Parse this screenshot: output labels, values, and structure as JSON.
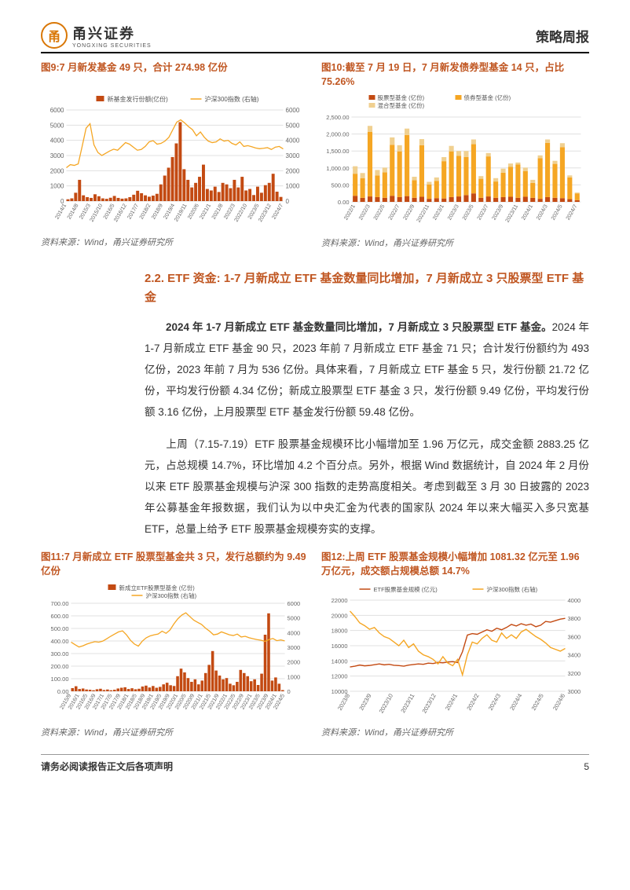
{
  "header": {
    "logo_cn": "甬兴证券",
    "logo_en": "YONGXING SECURITIES",
    "report_type": "策略周报"
  },
  "chart9": {
    "title": "图9:7 月新发基金 49 只，合计 274.98 亿份",
    "source": "资料来源：Wind，甬兴证券研究所",
    "legend1": "新基金发行份额(亿份)",
    "legend2": "沪深300指数 (右轴)",
    "type": "bar_line",
    "colors": {
      "bar": "#c34a12",
      "line": "#f5a623",
      "grid": "#e0e0e0",
      "bg": "#ffffff"
    },
    "y_left": {
      "min": 0,
      "max": 6000,
      "step": 1000
    },
    "y_right": {
      "min": 0,
      "max": 6000,
      "step": 1000
    },
    "x_labels": [
      "2014/1",
      "2014/8",
      "2015/3",
      "2015/10",
      "2016/5",
      "2016/12",
      "2017/7",
      "2018/2",
      "2018/9",
      "2019/4",
      "2019/11",
      "2020/6",
      "2021/1",
      "2021/8",
      "2022/3",
      "2022/10",
      "2023/5",
      "2023/12",
      "2024/7"
    ],
    "bars": [
      120,
      180,
      550,
      1400,
      380,
      260,
      210,
      450,
      320,
      180,
      150,
      220,
      340,
      210,
      160,
      180,
      260,
      420,
      680,
      520,
      380,
      290,
      360,
      480,
      1100,
      1680,
      2200,
      2900,
      3800,
      5200,
      2100,
      1400,
      900,
      1200,
      1600,
      2400,
      800,
      700,
      950,
      600,
      1200,
      1100,
      850,
      1400,
      900,
      1600,
      700,
      800,
      400,
      950,
      550,
      1050,
      1200,
      1800,
      620,
      275
    ],
    "line": [
      2200,
      2400,
      2350,
      2450,
      3600,
      4800,
      5100,
      3700,
      3200,
      3000,
      3150,
      3300,
      3420,
      3350,
      3600,
      3850,
      3750,
      3550,
      3350,
      3400,
      3600,
      3900,
      3980,
      3750,
      3800,
      3950,
      4200,
      4700,
      5200,
      5350,
      5150,
      4900,
      4700,
      4300,
      4550,
      4200,
      3950,
      3850,
      3900,
      4100,
      3950,
      4000,
      3800,
      3700,
      3900,
      3600,
      3650,
      3580,
      3500,
      3450,
      3480,
      3520,
      3400,
      3550,
      3600,
      3438
    ]
  },
  "chart10": {
    "title": "图10:截至 7 月 19 日，7 月新发债券型基金 14 只，占比 75.26%",
    "source": "资料来源：Wind，甬兴证券研究所",
    "legend1": "股票型基金 (亿份)",
    "legend2": "债券型基金 (亿份)",
    "legend3": "混合型基金 (亿份)",
    "type": "stacked_bar",
    "colors": {
      "stock": "#c34a12",
      "bond": "#f5a623",
      "mixed": "#f0d090",
      "grid": "#e0e0e0",
      "bg": "#ffffff"
    },
    "y": {
      "min": 0,
      "max": 2500,
      "step": 500
    },
    "x_labels": [
      "2022/1",
      "2022/3",
      "2022/5",
      "2022/7",
      "2022/9",
      "2022/11",
      "2023/1",
      "2023/3",
      "2023/5",
      "2023/7",
      "2023/9",
      "2023/11",
      "2024/1",
      "2024/3",
      "2024/5",
      "2024/7"
    ],
    "data": [
      {
        "stock": 180,
        "bond": 650,
        "mixed": 220
      },
      {
        "stock": 120,
        "bond": 580,
        "mixed": 150
      },
      {
        "stock": 160,
        "bond": 1900,
        "mixed": 180
      },
      {
        "stock": 140,
        "bond": 640,
        "mixed": 160
      },
      {
        "stock": 120,
        "bond": 750,
        "mixed": 140
      },
      {
        "stock": 180,
        "bond": 1500,
        "mixed": 220
      },
      {
        "stock": 140,
        "bond": 1350,
        "mixed": 180
      },
      {
        "stock": 170,
        "bond": 1800,
        "mixed": 190
      },
      {
        "stock": 120,
        "bond": 520,
        "mixed": 100
      },
      {
        "stock": 150,
        "bond": 1520,
        "mixed": 180
      },
      {
        "stock": 90,
        "bond": 420,
        "mixed": 80
      },
      {
        "stock": 110,
        "bond": 510,
        "mixed": 100
      },
      {
        "stock": 100,
        "bond": 1100,
        "mixed": 120
      },
      {
        "stock": 140,
        "bond": 1350,
        "mixed": 160
      },
      {
        "stock": 160,
        "bond": 1200,
        "mixed": 140
      },
      {
        "stock": 200,
        "bond": 1120,
        "mixed": 180
      },
      {
        "stock": 250,
        "bond": 1450,
        "mixed": 140
      },
      {
        "stock": 120,
        "bond": 560,
        "mixed": 80
      },
      {
        "stock": 160,
        "bond": 1180,
        "mixed": 100
      },
      {
        "stock": 120,
        "bond": 480,
        "mixed": 100
      },
      {
        "stock": 140,
        "bond": 720,
        "mixed": 120
      },
      {
        "stock": 150,
        "bond": 880,
        "mixed": 100
      },
      {
        "stock": 120,
        "bond": 980,
        "mixed": 60
      },
      {
        "stock": 150,
        "bond": 760,
        "mixed": 100
      },
      {
        "stock": 120,
        "bond": 440,
        "mixed": 90
      },
      {
        "stock": 90,
        "bond": 1200,
        "mixed": 80
      },
      {
        "stock": 140,
        "bond": 1600,
        "mixed": 100
      },
      {
        "stock": 120,
        "bond": 1000,
        "mixed": 90
      },
      {
        "stock": 110,
        "bond": 1500,
        "mixed": 120
      },
      {
        "stock": 80,
        "bond": 640,
        "mixed": 60
      },
      {
        "stock": 50,
        "bond": 200,
        "mixed": 25
      }
    ]
  },
  "section": {
    "title": "2.2. ETF 资金: 1-7 月新成立 ETF 基金数量同比增加，7 月新成立 3 只股票型 ETF 基金",
    "p1_bold": "2024 年 1-7 月新成立 ETF 基金数量同比增加，7 月新成立 3 只股票型 ETF 基金。",
    "p1_rest": "2024 年 1-7 月新成立 ETF 基金 90 只，2023 年前 7 月新成立 ETF 基金 71 只；合计发行份额约为 493 亿份，2023 年前 7 月为 536 亿份。具体来看，7 月新成立 ETF 基金 5 只，发行份额 21.72 亿份，平均发行份额 4.34 亿份；新成立股票型 ETF 基金 3 只，发行份额 9.49 亿份，平均发行份额 3.16 亿份，上月股票型 ETF 基金发行份额 59.48 亿份。",
    "p2": "上周（7.15-7.19）ETF 股票基金规模环比小幅增加至 1.96 万亿元，成交金额 2883.25 亿元，占总规模 14.7%，环比增加 4.2 个百分点。另外，根据 Wind 数据统计，自 2024 年 2 月份以来 ETF 股票基金规模与沪深 300 指数的走势高度相关。考虑到截至 3 月 30 日披露的 2023 年公募基金年报数据，我们认为以中央汇金为代表的国家队 2024 年以来大幅买入多只宽基 ETF，总量上给予 ETF 股票基金规模夯实的支撑。"
  },
  "chart11": {
    "title": "图11:7 月新成立 ETF 股票型基金共 3 只，发行总额约为 9.49 亿份",
    "source": "资料来源：Wind，甬兴证券研究所",
    "legend1": "新成立ETF股票型基金 (亿份)",
    "legend2": "沪深300指数 (右轴)",
    "type": "bar_line",
    "colors": {
      "bar": "#c34a12",
      "line": "#f5a623",
      "grid": "#e0e0e0",
      "bg": "#ffffff"
    },
    "y_left": {
      "min": 0,
      "max": 700,
      "step": 100,
      "decimals": 2
    },
    "y_right": {
      "min": 0,
      "max": 6000,
      "step": 1000
    },
    "x_labels": [
      "2015/9",
      "2016/1",
      "2016/5",
      "2016/9",
      "2017/1",
      "2017/5",
      "2017/9",
      "2018/1",
      "2018/5",
      "2018/9",
      "2019/1",
      "2019/5",
      "2019/9",
      "2020/1",
      "2020/5",
      "2020/9",
      "2021/1",
      "2021/5",
      "2021/9",
      "2022/1",
      "2022/5",
      "2022/9",
      "2023/1",
      "2023/5",
      "2023/9",
      "2024/1",
      "2024/5"
    ],
    "bars": [
      25,
      40,
      18,
      22,
      14,
      12,
      8,
      16,
      20,
      10,
      14,
      8,
      12,
      22,
      28,
      32,
      18,
      24,
      16,
      20,
      38,
      45,
      30,
      42,
      28,
      35,
      55,
      68,
      48,
      42,
      120,
      180,
      150,
      105,
      75,
      95,
      55,
      85,
      145,
      210,
      320,
      165,
      125,
      95,
      105,
      60,
      48,
      75,
      170,
      145,
      120,
      80,
      95,
      50,
      140,
      450,
      620,
      85,
      110,
      60,
      9.5
    ],
    "line": [
      3350,
      3180,
      3020,
      3100,
      3220,
      3310,
      3380,
      3350,
      3420,
      3580,
      3750,
      3900,
      4050,
      4120,
      3850,
      3480,
      3220,
      3080,
      3420,
      3650,
      3780,
      3850,
      3900,
      4100,
      3950,
      4180,
      4600,
      4950,
      5200,
      5350,
      5100,
      4850,
      4700,
      4550,
      4300,
      4100,
      3850,
      3900,
      4050,
      3950,
      3850,
      3800,
      3900,
      3700,
      3750,
      3650,
      3580,
      3520,
      3480,
      3400,
      3520,
      3600,
      3450,
      3500,
      3438
    ]
  },
  "chart12": {
    "title": "图12:上周 ETF 股票基金规模小幅增加 1081.32 亿元至 1.96 万亿元，成交额占规模总额 14.7%",
    "source": "资料来源：Wind，甬兴证券研究所",
    "legend1": "ETF股票基金规模 (亿元)",
    "legend2": "沪深300指数 (右轴)",
    "type": "double_line",
    "colors": {
      "line1": "#c34a12",
      "line2": "#f5a623",
      "grid": "#e0e0e0",
      "bg": "#ffffff"
    },
    "y_left": {
      "min": 10000,
      "max": 22000,
      "step": 2000
    },
    "y_right": {
      "min": 3000,
      "max": 4000,
      "step": 200
    },
    "x_labels": [
      "2023/8",
      "2023/9",
      "2023/10",
      "2023/11",
      "2023/12",
      "2024/1",
      "2024/2",
      "2024/3",
      "2024/4",
      "2024/5",
      "2024/6"
    ],
    "line1": [
      13200,
      13300,
      13450,
      13350,
      13400,
      13500,
      13600,
      13480,
      13550,
      13420,
      13380,
      13300,
      13450,
      13520,
      13600,
      13550,
      13700,
      13650,
      13800,
      13750,
      13850,
      13900,
      13780,
      15200,
      17400,
      17600,
      17500,
      17800,
      18100,
      17900,
      18300,
      18100,
      18400,
      18800,
      18600,
      18900,
      18700,
      18850,
      18500,
      18700,
      19200,
      19100,
      19300,
      19500,
      19600
    ],
    "line2": [
      3880,
      3820,
      3750,
      3720,
      3680,
      3700,
      3640,
      3600,
      3580,
      3540,
      3500,
      3560,
      3480,
      3520,
      3440,
      3400,
      3380,
      3350,
      3300,
      3380,
      3310,
      3280,
      3350,
      3180,
      3400,
      3540,
      3520,
      3580,
      3620,
      3560,
      3540,
      3640,
      3580,
      3620,
      3580,
      3650,
      3680,
      3640,
      3600,
      3570,
      3530,
      3480,
      3460,
      3440,
      3470
    ]
  },
  "footer": {
    "disclaimer": "请务必阅读报告正文后各项声明",
    "page": "5"
  }
}
